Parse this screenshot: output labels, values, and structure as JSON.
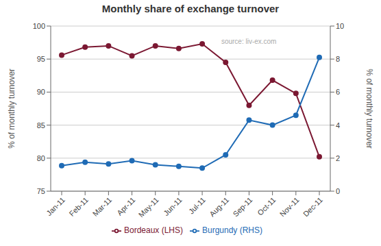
{
  "chart_data": {
    "type": "line",
    "title": "Monthly share of exchange turnover",
    "categories": [
      "Jan-11",
      "Feb-11",
      "Mar-11",
      "Apr-11",
      "May-11",
      "Jun-11",
      "Jul-11",
      "Aug-11",
      "Sep-11",
      "Oct-11",
      "Nov-11",
      "Dec-11"
    ],
    "series": [
      {
        "name": "Bordeaux (LHS)",
        "color": "#7B1832",
        "axis": "y",
        "marker": "circle",
        "values": [
          95.6,
          96.8,
          97.0,
          95.5,
          97.0,
          96.6,
          97.3,
          94.5,
          88.0,
          91.8,
          89.8,
          80.2
        ]
      },
      {
        "name": "Burgundy (RHS)",
        "color": "#1F6BB5",
        "axis": "y2",
        "marker": "circle",
        "values": [
          1.55,
          1.75,
          1.65,
          1.85,
          1.6,
          1.5,
          1.4,
          2.2,
          4.3,
          4.0,
          4.6,
          8.1
        ]
      }
    ],
    "ylabel": "% of monthly turnover",
    "y2label": "% of monthly turnover",
    "ylim": [
      75,
      100
    ],
    "yticks": [
      75,
      80,
      85,
      90,
      95,
      100
    ],
    "y2lim": [
      0,
      10
    ],
    "y2ticks": [
      0,
      2,
      4,
      6,
      8,
      10
    ],
    "grid": true,
    "legend": "bottom",
    "annotations": [
      "source: liv-ex.com"
    ]
  }
}
